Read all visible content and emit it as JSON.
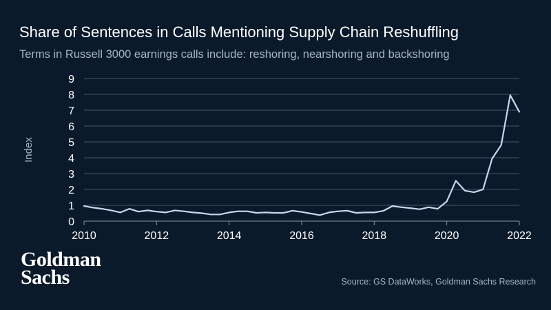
{
  "title": "Share of Sentences in Calls Mentioning Supply Chain Reshuffling",
  "subtitle": "Terms in Russell 3000 earnings calls include: reshoring, nearshoring and backshoring",
  "source": "Source: GS DataWorks, Goldman Sachs Research",
  "logo": {
    "line1": "Goldman",
    "line2": "Sachs"
  },
  "colors": {
    "background": "#0b1a2b",
    "line": "#c6d9ef",
    "grid": "#4a5868",
    "text_muted": "#a9b4c2"
  },
  "chart_data": {
    "type": "line",
    "ylabel": "Index",
    "xlabel": "",
    "xlim": [
      2010,
      2022
    ],
    "ylim": [
      0,
      9
    ],
    "grid": true,
    "x_ticks": [
      2010,
      2012,
      2014,
      2016,
      2018,
      2020,
      2022
    ],
    "y_ticks": [
      0,
      1,
      2,
      3,
      4,
      5,
      6,
      7,
      8,
      9
    ],
    "series": [
      {
        "x": [
          2010.0,
          2010.25,
          2010.5,
          2010.75,
          2011.0,
          2011.25,
          2011.5,
          2011.75,
          2012.0,
          2012.25,
          2012.5,
          2012.75,
          2013.0,
          2013.25,
          2013.5,
          2013.75,
          2014.0,
          2014.25,
          2014.5,
          2014.75,
          2015.0,
          2015.25,
          2015.5,
          2015.75,
          2016.0,
          2016.25,
          2016.5,
          2016.75,
          2017.0,
          2017.25,
          2017.5,
          2017.75,
          2018.0,
          2018.25,
          2018.5,
          2018.75,
          2019.0,
          2019.25,
          2019.5,
          2019.75,
          2020.0,
          2020.25,
          2020.5,
          2020.75,
          2021.0,
          2021.25,
          2021.5,
          2021.75,
          2022.0
        ],
        "y": [
          0.95,
          0.85,
          0.78,
          0.68,
          0.55,
          0.78,
          0.6,
          0.68,
          0.6,
          0.55,
          0.68,
          0.62,
          0.55,
          0.5,
          0.42,
          0.42,
          0.55,
          0.62,
          0.62,
          0.52,
          0.55,
          0.52,
          0.52,
          0.66,
          0.58,
          0.48,
          0.38,
          0.55,
          0.62,
          0.66,
          0.52,
          0.55,
          0.55,
          0.65,
          0.95,
          0.88,
          0.82,
          0.75,
          0.88,
          0.78,
          1.25,
          2.55,
          1.92,
          1.82,
          2.0,
          3.95,
          4.8,
          7.95,
          6.9
        ]
      }
    ]
  }
}
